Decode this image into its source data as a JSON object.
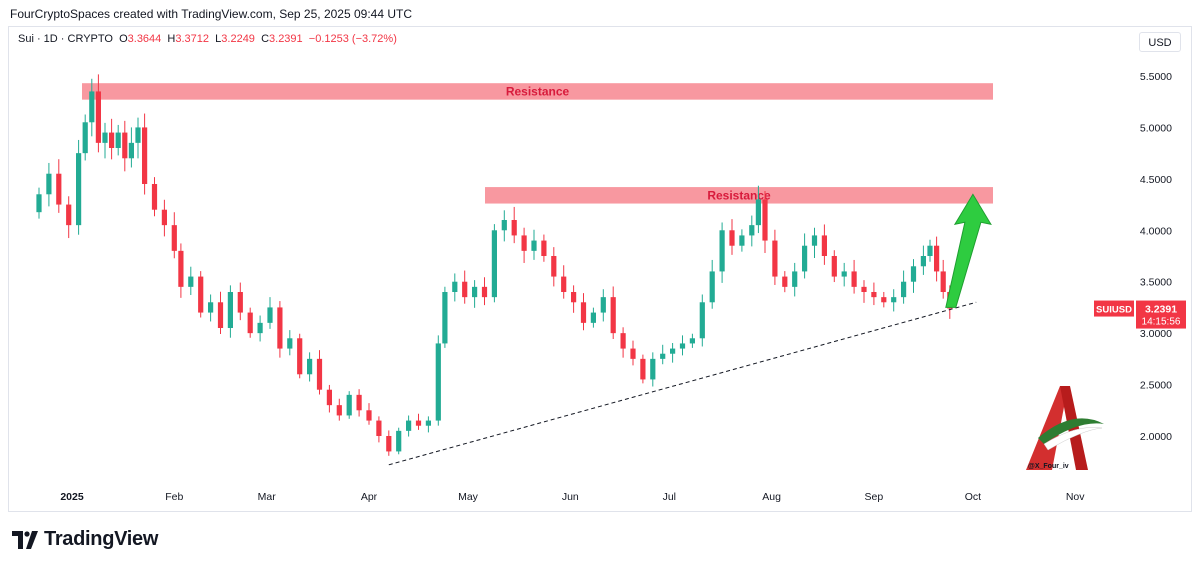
{
  "header": {
    "caption": "FourCryptoSpaces created with TradingView.com, Sep 25, 2025 09:44 UTC"
  },
  "legend": {
    "symbol": "Sui · 1D · CRYPTO",
    "o_label": "O",
    "o_value": "3.3644",
    "h_label": "H",
    "h_value": "3.3712",
    "l_label": "L",
    "l_value": "3.2249",
    "c_label": "C",
    "c_value": "3.2391",
    "change": "−0.1253 (−3.72%)"
  },
  "currency_button": "USD",
  "price_tag": {
    "symbol": "SUIUSD",
    "price": "3.2391",
    "countdown": "14:15:56",
    "color": "#f23645"
  },
  "footer": {
    "brand": "TradingView"
  },
  "watermark": {
    "handle": "@X_Four_iv"
  },
  "colors": {
    "up": "#22ab94",
    "down": "#f23645",
    "resistance_zone": "#f7868f",
    "arrow": "#2ecc40"
  },
  "chart_data": {
    "type": "candlestick",
    "y_axis": {
      "ticks": [
        "5.5000",
        "5.0000",
        "4.5000",
        "4.0000",
        "3.5000",
        "3.0000",
        "2.5000",
        "2.0000"
      ],
      "range": [
        1.55,
        5.85
      ]
    },
    "x_axis": {
      "ticks": [
        "2025",
        "Feb",
        "Mar",
        "Apr",
        "May",
        "Jun",
        "Jul",
        "Aug",
        "Sep",
        "Oct",
        "Nov"
      ]
    },
    "annotations": [
      {
        "type": "zone",
        "label": "Resistance",
        "low": 5.27,
        "high": 5.43
      },
      {
        "type": "zone",
        "label": "Resistance",
        "low": 4.26,
        "high": 4.42
      },
      {
        "type": "trendline",
        "style": "dashed",
        "from": {
          "date": "2025-04-07",
          "price": 1.72
        },
        "to": {
          "date": "2025-10-02",
          "price": 3.3
        }
      },
      {
        "type": "arrow",
        "direction": "up",
        "from": {
          "date": "2025-09-24",
          "price": 3.25
        },
        "to": {
          "date": "2025-10-01",
          "price": 4.35
        }
      }
    ],
    "last_price": 3.2391,
    "series": [
      {
        "d": "2024-12-22",
        "c": 4.35
      },
      {
        "d": "2024-12-25",
        "c": 4.55
      },
      {
        "d": "2024-12-28",
        "c": 4.25
      },
      {
        "d": "2024-12-31",
        "c": 4.05
      },
      {
        "d": "2025-01-03",
        "c": 4.75
      },
      {
        "d": "2025-01-05",
        "c": 5.05
      },
      {
        "d": "2025-01-07",
        "c": 5.35
      },
      {
        "d": "2025-01-09",
        "c": 4.85
      },
      {
        "d": "2025-01-11",
        "c": 4.95
      },
      {
        "d": "2025-01-13",
        "c": 4.8
      },
      {
        "d": "2025-01-15",
        "c": 4.95
      },
      {
        "d": "2025-01-17",
        "c": 4.7
      },
      {
        "d": "2025-01-19",
        "c": 4.85
      },
      {
        "d": "2025-01-21",
        "c": 5.0
      },
      {
        "d": "2025-01-23",
        "c": 4.45
      },
      {
        "d": "2025-01-26",
        "c": 4.2
      },
      {
        "d": "2025-01-29",
        "c": 4.05
      },
      {
        "d": "2025-02-01",
        "c": 3.8
      },
      {
        "d": "2025-02-03",
        "c": 3.45
      },
      {
        "d": "2025-02-06",
        "c": 3.55
      },
      {
        "d": "2025-02-09",
        "c": 3.2
      },
      {
        "d": "2025-02-12",
        "c": 3.3
      },
      {
        "d": "2025-02-15",
        "c": 3.05
      },
      {
        "d": "2025-02-18",
        "c": 3.4
      },
      {
        "d": "2025-02-21",
        "c": 3.2
      },
      {
        "d": "2025-02-24",
        "c": 3.0
      },
      {
        "d": "2025-02-27",
        "c": 3.1
      },
      {
        "d": "2025-03-02",
        "c": 3.25
      },
      {
        "d": "2025-03-05",
        "c": 2.85
      },
      {
        "d": "2025-03-08",
        "c": 2.95
      },
      {
        "d": "2025-03-11",
        "c": 2.6
      },
      {
        "d": "2025-03-14",
        "c": 2.75
      },
      {
        "d": "2025-03-17",
        "c": 2.45
      },
      {
        "d": "2025-03-20",
        "c": 2.3
      },
      {
        "d": "2025-03-23",
        "c": 2.2
      },
      {
        "d": "2025-03-26",
        "c": 2.4
      },
      {
        "d": "2025-03-29",
        "c": 2.25
      },
      {
        "d": "2025-04-01",
        "c": 2.15
      },
      {
        "d": "2025-04-04",
        "c": 2.0
      },
      {
        "d": "2025-04-07",
        "c": 1.85
      },
      {
        "d": "2025-04-10",
        "c": 2.05
      },
      {
        "d": "2025-04-13",
        "c": 2.15
      },
      {
        "d": "2025-04-16",
        "c": 2.1
      },
      {
        "d": "2025-04-19",
        "c": 2.15
      },
      {
        "d": "2025-04-22",
        "c": 2.9
      },
      {
        "d": "2025-04-24",
        "c": 3.4
      },
      {
        "d": "2025-04-27",
        "c": 3.5
      },
      {
        "d": "2025-04-30",
        "c": 3.35
      },
      {
        "d": "2025-05-03",
        "c": 3.45
      },
      {
        "d": "2025-05-06",
        "c": 3.35
      },
      {
        "d": "2025-05-09",
        "c": 4.0
      },
      {
        "d": "2025-05-12",
        "c": 4.1
      },
      {
        "d": "2025-05-15",
        "c": 3.95
      },
      {
        "d": "2025-05-18",
        "c": 3.8
      },
      {
        "d": "2025-05-21",
        "c": 3.9
      },
      {
        "d": "2025-05-24",
        "c": 3.75
      },
      {
        "d": "2025-05-27",
        "c": 3.55
      },
      {
        "d": "2025-05-30",
        "c": 3.4
      },
      {
        "d": "2025-06-02",
        "c": 3.3
      },
      {
        "d": "2025-06-05",
        "c": 3.1
      },
      {
        "d": "2025-06-08",
        "c": 3.2
      },
      {
        "d": "2025-06-11",
        "c": 3.35
      },
      {
        "d": "2025-06-14",
        "c": 3.0
      },
      {
        "d": "2025-06-17",
        "c": 2.85
      },
      {
        "d": "2025-06-20",
        "c": 2.75
      },
      {
        "d": "2025-06-23",
        "c": 2.55
      },
      {
        "d": "2025-06-26",
        "c": 2.75
      },
      {
        "d": "2025-06-29",
        "c": 2.8
      },
      {
        "d": "2025-07-02",
        "c": 2.85
      },
      {
        "d": "2025-07-05",
        "c": 2.9
      },
      {
        "d": "2025-07-08",
        "c": 2.95
      },
      {
        "d": "2025-07-11",
        "c": 3.3
      },
      {
        "d": "2025-07-14",
        "c": 3.6
      },
      {
        "d": "2025-07-17",
        "c": 4.0
      },
      {
        "d": "2025-07-20",
        "c": 3.85
      },
      {
        "d": "2025-07-23",
        "c": 3.95
      },
      {
        "d": "2025-07-26",
        "c": 4.05
      },
      {
        "d": "2025-07-28",
        "c": 4.3
      },
      {
        "d": "2025-07-30",
        "c": 3.9
      },
      {
        "d": "2025-08-02",
        "c": 3.55
      },
      {
        "d": "2025-08-05",
        "c": 3.45
      },
      {
        "d": "2025-08-08",
        "c": 3.6
      },
      {
        "d": "2025-08-11",
        "c": 3.85
      },
      {
        "d": "2025-08-14",
        "c": 3.95
      },
      {
        "d": "2025-08-17",
        "c": 3.75
      },
      {
        "d": "2025-08-20",
        "c": 3.55
      },
      {
        "d": "2025-08-23",
        "c": 3.6
      },
      {
        "d": "2025-08-26",
        "c": 3.45
      },
      {
        "d": "2025-08-29",
        "c": 3.4
      },
      {
        "d": "2025-09-01",
        "c": 3.35
      },
      {
        "d": "2025-09-04",
        "c": 3.3
      },
      {
        "d": "2025-09-07",
        "c": 3.35
      },
      {
        "d": "2025-09-10",
        "c": 3.5
      },
      {
        "d": "2025-09-13",
        "c": 3.65
      },
      {
        "d": "2025-09-16",
        "c": 3.75
      },
      {
        "d": "2025-09-18",
        "c": 3.85
      },
      {
        "d": "2025-09-20",
        "c": 3.6
      },
      {
        "d": "2025-09-22",
        "c": 3.4
      },
      {
        "d": "2025-09-24",
        "c": 3.239
      }
    ]
  }
}
